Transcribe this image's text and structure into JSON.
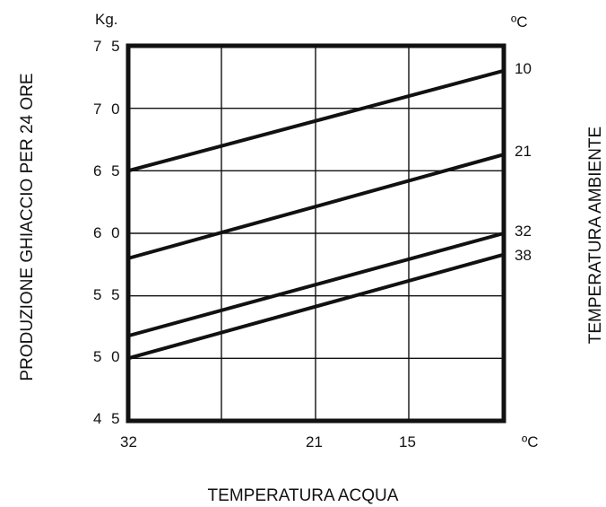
{
  "chart_data": {
    "type": "line",
    "ylabel": "PRODUZIONE GHIACCIO PER 24 ORE",
    "xlabel": "TEMPERATURA ACQUA",
    "right_label": "TEMPERATURA AMBIENTE",
    "y_unit": "Kg.",
    "x_unit": "ºC",
    "right_unit": "ºC",
    "x_ticks": [
      "32",
      "21",
      "15"
    ],
    "y_ticks": [
      "7 5",
      "7 0",
      "6 5",
      "6 0",
      "5 5",
      "5 0",
      "4 5"
    ],
    "ylim": [
      45,
      75
    ],
    "grid": true,
    "series": [
      {
        "name": "10",
        "values": [
          65,
          73
        ]
      },
      {
        "name": "21",
        "values": [
          58,
          66.3
        ]
      },
      {
        "name": "32",
        "values": [
          51.8,
          60
        ]
      },
      {
        "name": "38",
        "values": [
          50,
          58.3
        ]
      }
    ]
  }
}
